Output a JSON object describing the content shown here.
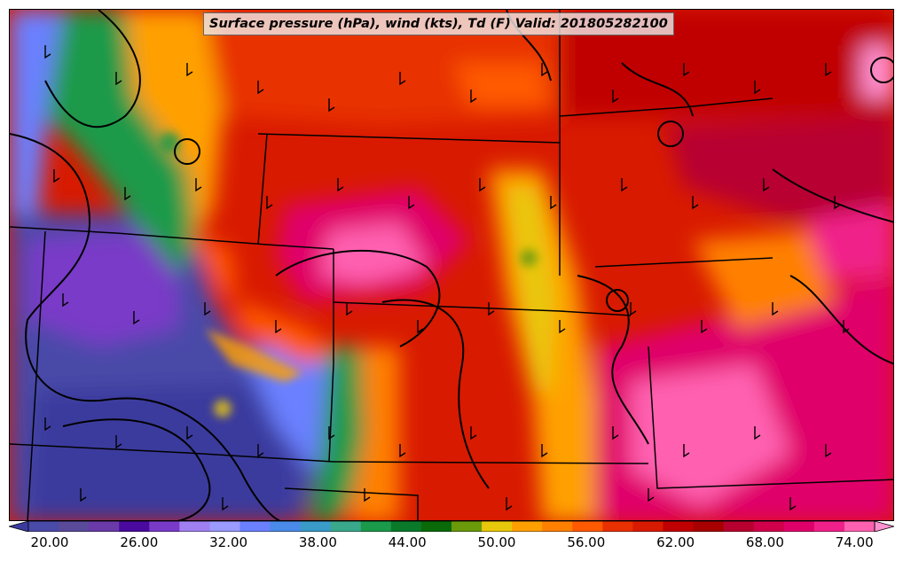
{
  "title": "Surface pressure (hPa), wind (kts), Td (F) Valid: 201805282100",
  "colorbar": {
    "tick_labels": [
      "20.00",
      "26.00",
      "32.00",
      "38.00",
      "44.00",
      "50.00",
      "56.00",
      "62.00",
      "68.00",
      "74.00"
    ],
    "colors": [
      "#3a3a9e",
      "#4a4aa8",
      "#5a4a9a",
      "#6a3aa8",
      "#4a0aa0",
      "#7a3ac8",
      "#a080f0",
      "#9a9aff",
      "#6a80ff",
      "#4a8ae8",
      "#3a9ac8",
      "#3aa88a",
      "#1a9a4a",
      "#0a7a2a",
      "#0a6a0a",
      "#6a9a0a",
      "#e8c80a",
      "#ffa000",
      "#ff8000",
      "#ff5a00",
      "#e83000",
      "#d81a00",
      "#c00000",
      "#a80000",
      "#b80030",
      "#d0004a",
      "#e0006a",
      "#f0208a",
      "#ff60b0",
      "#ff90d0"
    ]
  },
  "map": {
    "field": "dewpoint",
    "units": "F",
    "region": "central-united-states",
    "overlays": [
      "surface-pressure-contours",
      "wind-barbs",
      "state-borders"
    ]
  }
}
